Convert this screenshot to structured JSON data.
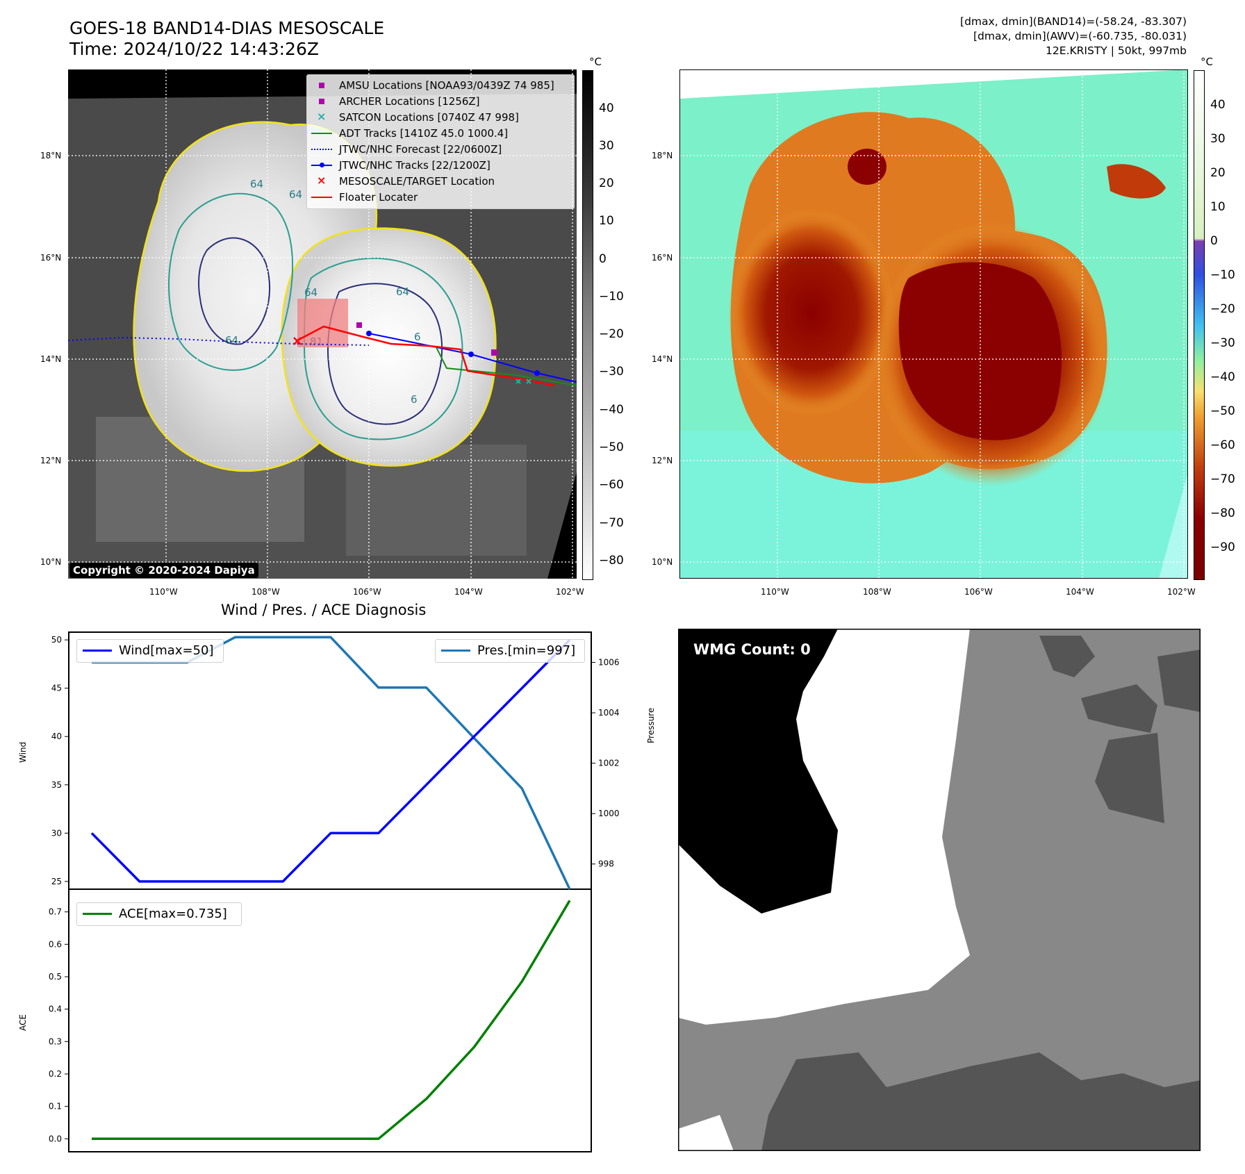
{
  "header": {
    "title_line1": "GOES-18 BAND14-DIAS MESOSCALE",
    "title_line2": "Time: 2024/10/22 14:43:26Z",
    "info_line1": "[dmax, dmin](BAND14)=(-58.24, -83.307)",
    "info_line2": "[dmax, dmin](AWV)=(-60.735, -80.031)",
    "info_line3": "12E.KRISTY | 50kt, 997mb"
  },
  "map_axes": {
    "lon_labels": [
      "110°W",
      "108°W",
      "106°W",
      "104°W",
      "102°W"
    ],
    "lat_labels": [
      "18°N",
      "16°N",
      "14°N",
      "12°N",
      "10°N"
    ]
  },
  "ir_colorbar": {
    "unit": "°C",
    "ticks": [
      "40",
      "30",
      "20",
      "10",
      "0",
      "−10",
      "−20",
      "−30",
      "−40",
      "−50",
      "−60",
      "−70",
      "−80"
    ]
  },
  "color_colorbar": {
    "unit": "°C",
    "ticks": [
      "40",
      "30",
      "20",
      "10",
      "0",
      "−10",
      "−20",
      "−30",
      "−40",
      "−50",
      "−60",
      "−70",
      "−80",
      "−90"
    ]
  },
  "legend": {
    "amsu": "AMSU Locations [NOAA93/0439Z 74 985]",
    "archer": "ARCHER Locations [1256Z]",
    "satcon": "SATCON Locations [0740Z 47 998]",
    "adt": "ADT Tracks [1410Z 45.0 1000.4]",
    "forecast": "JTWC/NHC Forecast [22/0600Z]",
    "tracks": "JTWC/NHC Tracks [22/1200Z]",
    "target": "MESOSCALE/TARGET Location",
    "floater": "Floater Locater"
  },
  "contour_labels": [
    "64",
    "64",
    "64",
    "64",
    "81",
    "64",
    "6",
    "6"
  ],
  "copyright": "Copyright © 2020-2024 Dapiya",
  "wmg": {
    "label": "WMG Count: 0"
  },
  "chart_data": [
    {
      "type": "line",
      "title": "Wind / Pres. / ACE Diagnosis",
      "ylabel": "Wind",
      "ylabel_right": "Pressure",
      "ylim": [
        24.2,
        50.8
      ],
      "ylim_right": [
        997,
        1007.2
      ],
      "yticks": [
        "50",
        "45",
        "40",
        "35",
        "30",
        "25"
      ],
      "yticks_right": [
        "1006",
        "1004",
        "1002",
        "1000",
        "998"
      ],
      "x": [
        0,
        1,
        2,
        3,
        4,
        5,
        6,
        7,
        8,
        9,
        10
      ],
      "series": [
        {
          "name": "Wind[max=50]",
          "color": "#0000ff",
          "values": [
            30,
            25,
            25,
            25,
            25,
            30,
            30,
            35,
            40,
            45,
            50
          ]
        },
        {
          "name": "Pres.[min=997]",
          "color": "#1f77b4",
          "axis": "right",
          "values": [
            1006,
            1006,
            1006,
            1007,
            1007,
            1007,
            1005,
            1005,
            1003,
            1001,
            997
          ]
        }
      ]
    },
    {
      "type": "line",
      "ylabel": "ACE",
      "ylim": [
        -0.04,
        0.77
      ],
      "yticks": [
        "0.7",
        "0.6",
        "0.5",
        "0.4",
        "0.3",
        "0.2",
        "0.1",
        "0.0"
      ],
      "x": [
        0,
        1,
        2,
        3,
        4,
        5,
        6,
        7,
        8,
        9,
        10
      ],
      "series": [
        {
          "name": "ACE[max=0.735]",
          "color": "#008000",
          "values": [
            0,
            0,
            0,
            0,
            0,
            0,
            0,
            0.123,
            0.283,
            0.485,
            0.735
          ]
        }
      ]
    }
  ]
}
